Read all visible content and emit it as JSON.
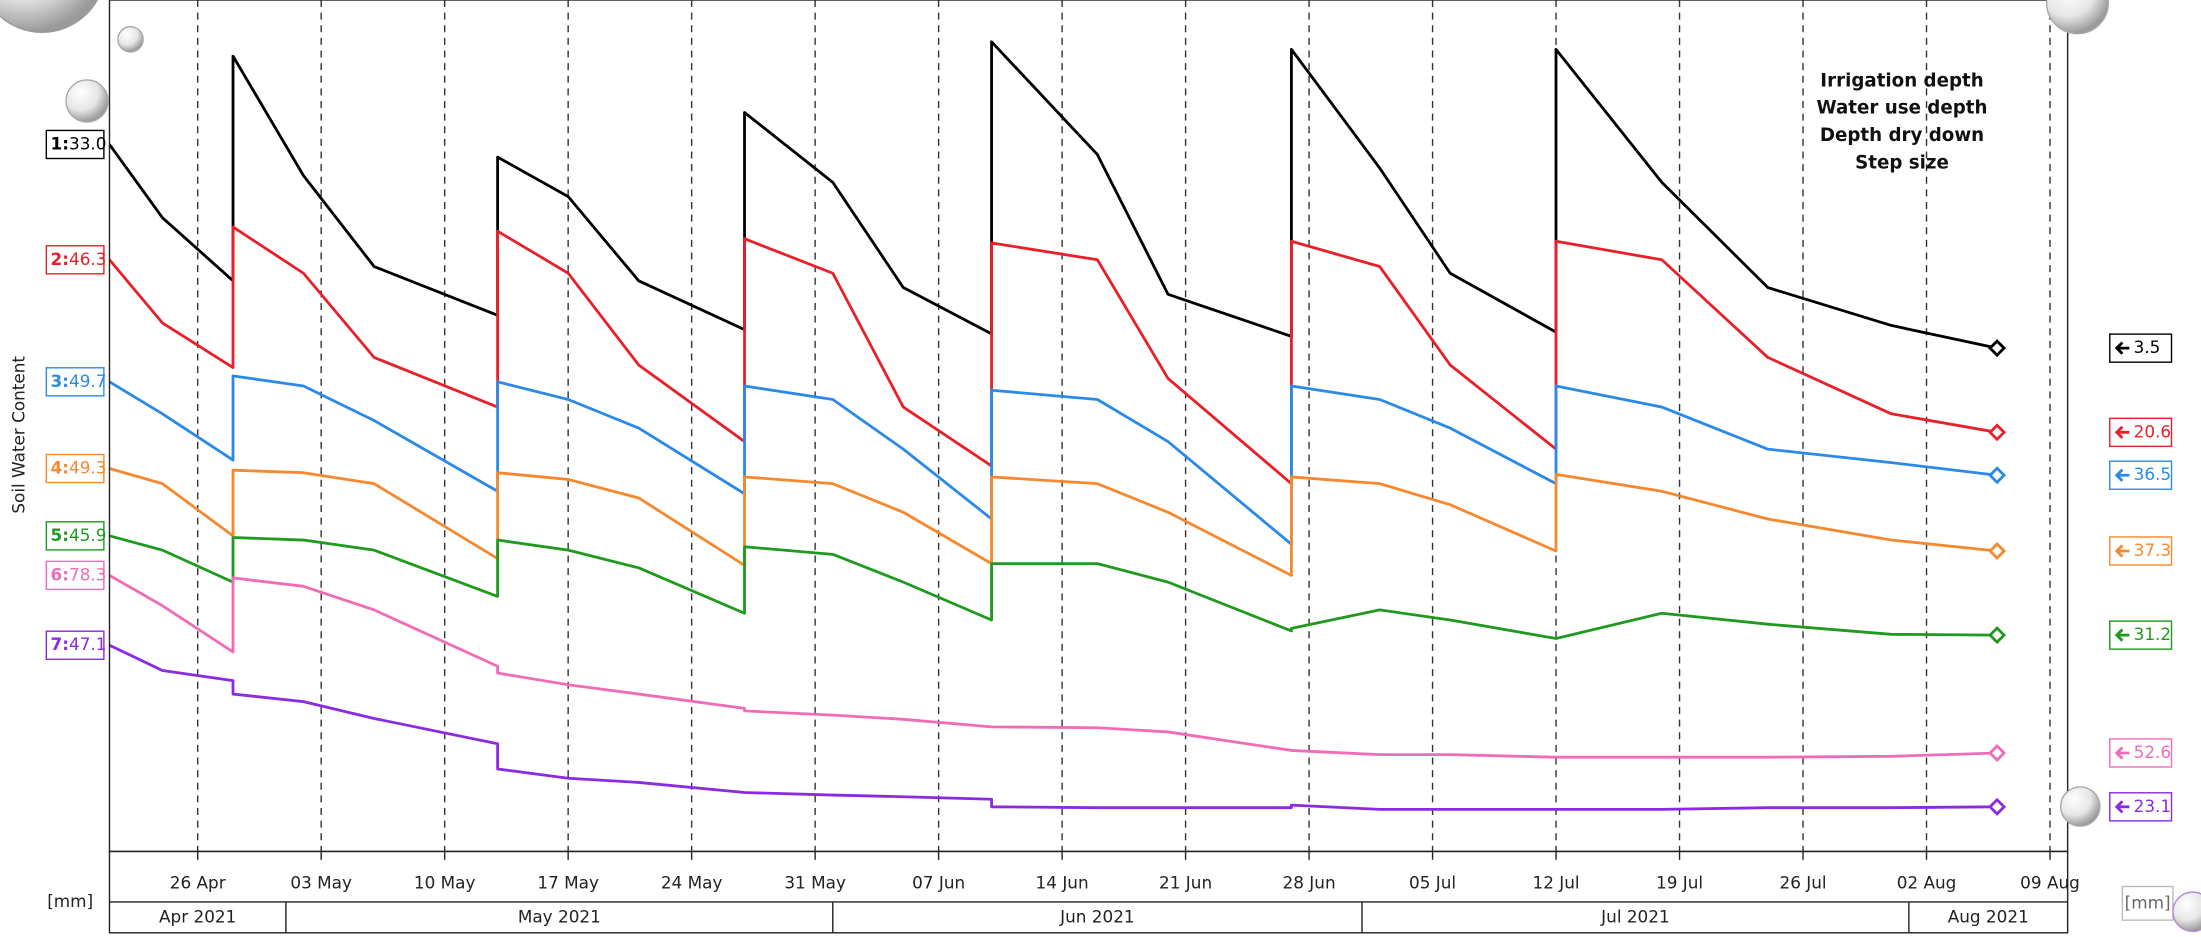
{
  "chart_data": {
    "type": "line",
    "y_label": "Soil Water Content",
    "units": "[mm]",
    "annotation": [
      "Irrigation depth",
      "Water use depth",
      "Depth dry down",
      "Step size"
    ],
    "x": [
      "2021-04-21",
      "2021-04-24",
      "2021-04-28",
      "2021-04-28",
      "2021-05-02",
      "2021-05-06",
      "2021-05-13",
      "2021-05-13",
      "2021-05-17",
      "2021-05-21",
      "2021-05-27",
      "2021-05-27",
      "2021-06-01",
      "2021-06-05",
      "2021-06-10",
      "2021-06-10",
      "2021-06-16",
      "2021-06-20",
      "2021-06-27",
      "2021-06-27",
      "2021-07-02",
      "2021-07-06",
      "2021-07-12",
      "2021-07-12",
      "2021-07-18",
      "2021-07-24",
      "2021-07-31",
      "2021-08-06"
    ],
    "xlim": [
      "2021-04-21",
      "2021-08-10"
    ],
    "xticks": [
      {
        "value": "2021-04-26",
        "label": "26 Apr"
      },
      {
        "value": "2021-05-03",
        "label": "03 May"
      },
      {
        "value": "2021-05-10",
        "label": "10 May"
      },
      {
        "value": "2021-05-17",
        "label": "17 May"
      },
      {
        "value": "2021-05-24",
        "label": "24 May"
      },
      {
        "value": "2021-05-31",
        "label": "31 May"
      },
      {
        "value": "2021-06-07",
        "label": "07 Jun"
      },
      {
        "value": "2021-06-14",
        "label": "14 Jun"
      },
      {
        "value": "2021-06-21",
        "label": "21 Jun"
      },
      {
        "value": "2021-06-28",
        "label": "28 Jun"
      },
      {
        "value": "2021-07-05",
        "label": "05 Jul"
      },
      {
        "value": "2021-07-12",
        "label": "12 Jul"
      },
      {
        "value": "2021-07-19",
        "label": "19 Jul"
      },
      {
        "value": "2021-07-26",
        "label": "26 Jul"
      },
      {
        "value": "2021-08-02",
        "label": "02 Aug"
      },
      {
        "value": "2021-08-09",
        "label": "09 Aug"
      }
    ],
    "months": [
      "Apr 2021",
      "May 2021",
      "Jun 2021",
      "Jul 2021",
      "Aug 2021"
    ],
    "ylim": [
      0,
      100
    ],
    "grid": true,
    "series": [
      {
        "name": "1:",
        "start_label": "33.0",
        "end_label": "3.5",
        "color": "#000000",
        "values": [
          84.0,
          75.3,
          67.8,
          94.5,
          80.3,
          69.5,
          63.7,
          82.5,
          77.8,
          67.8,
          62.0,
          87.8,
          79.5,
          67.0,
          61.5,
          96.2,
          82.8,
          66.2,
          61.2,
          95.3,
          81.2,
          68.7,
          61.7,
          95.3,
          79.5,
          67.0,
          62.5,
          59.8
        ]
      },
      {
        "name": "2:",
        "start_label": "46.3",
        "end_label": "20.6",
        "color": "#e8202a",
        "values": [
          70.3,
          62.8,
          57.5,
          74.2,
          68.7,
          58.7,
          52.8,
          73.7,
          68.7,
          57.8,
          48.7,
          72.8,
          68.7,
          52.8,
          45.8,
          72.3,
          70.3,
          56.2,
          43.7,
          72.5,
          69.5,
          57.8,
          47.8,
          72.5,
          70.3,
          58.7,
          52.0,
          49.8
        ]
      },
      {
        "name": "3:",
        "start_label": "49.7",
        "end_label": "36.5",
        "color": "#2b8ae8",
        "values": [
          55.8,
          52.0,
          46.5,
          56.5,
          55.3,
          51.2,
          42.8,
          55.8,
          53.7,
          50.3,
          42.5,
          55.3,
          53.7,
          47.8,
          39.5,
          54.8,
          53.7,
          48.7,
          36.5,
          55.3,
          53.7,
          50.3,
          43.7,
          55.3,
          52.8,
          47.8,
          46.2,
          44.7
        ]
      },
      {
        "name": "4:",
        "start_label": "49.3",
        "end_label": "37.3",
        "color": "#f5892f",
        "values": [
          45.5,
          43.7,
          37.5,
          45.3,
          45.0,
          43.7,
          34.8,
          45.0,
          44.2,
          42.0,
          34.0,
          44.5,
          43.7,
          40.3,
          34.2,
          44.5,
          43.7,
          40.3,
          32.8,
          44.5,
          43.7,
          41.2,
          35.7,
          44.8,
          42.8,
          39.5,
          37.0,
          35.7
        ]
      },
      {
        "name": "5:",
        "start_label": "45.9",
        "end_label": "31.2",
        "color": "#1f9a1f",
        "values": [
          37.5,
          35.8,
          32.0,
          37.3,
          37.0,
          35.8,
          30.3,
          37.0,
          35.8,
          33.7,
          28.3,
          36.2,
          35.3,
          32.0,
          27.5,
          34.2,
          34.2,
          32.0,
          26.2,
          26.5,
          28.7,
          27.5,
          25.3,
          25.3,
          28.3,
          27.0,
          25.8,
          25.7
        ]
      },
      {
        "name": "6:",
        "start_label": "78.3",
        "end_label": "52.6",
        "color": "#f06cb6",
        "values": [
          32.8,
          29.2,
          23.7,
          32.5,
          31.5,
          28.7,
          22.0,
          21.2,
          19.8,
          18.7,
          17.0,
          16.7,
          16.2,
          15.7,
          14.8,
          14.8,
          14.7,
          14.2,
          12.0,
          12.0,
          11.5,
          11.5,
          11.2,
          11.2,
          11.2,
          11.2,
          11.3,
          11.7
        ]
      },
      {
        "name": "7:",
        "start_label": "47.1",
        "end_label": "23.1",
        "color": "#8a2be2",
        "values": [
          24.5,
          21.5,
          20.3,
          18.7,
          17.8,
          15.8,
          12.8,
          9.8,
          8.7,
          8.2,
          7.0,
          7.0,
          6.7,
          6.5,
          6.2,
          5.3,
          5.2,
          5.2,
          5.2,
          5.5,
          5.0,
          5.0,
          5.0,
          5.0,
          5.0,
          5.2,
          5.2,
          5.3
        ]
      }
    ]
  }
}
